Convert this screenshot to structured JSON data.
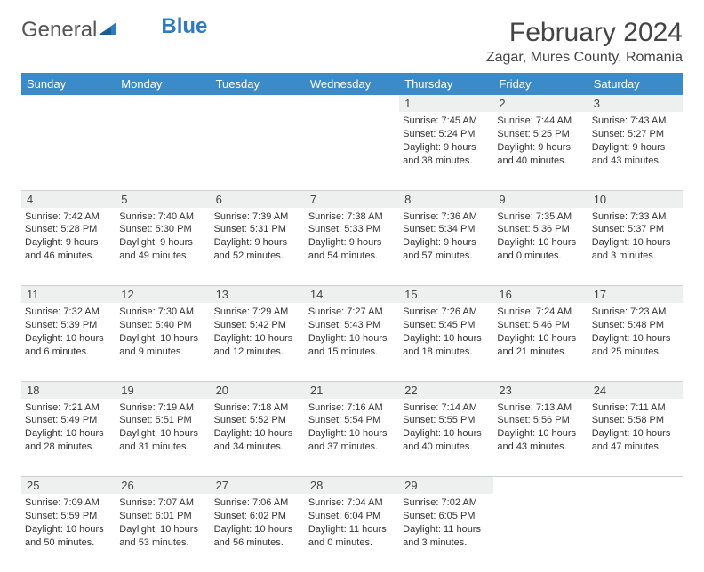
{
  "logo": {
    "part1": "General",
    "part2": "Blue"
  },
  "title": "February 2024",
  "location": "Zagar, Mures County, Romania",
  "colors": {
    "header_bg": "#3b8bc8",
    "daynum_bg": "#eef0f0",
    "text": "#333333",
    "border": "#d0d0d0"
  },
  "day_headers": [
    "Sunday",
    "Monday",
    "Tuesday",
    "Wednesday",
    "Thursday",
    "Friday",
    "Saturday"
  ],
  "weeks": [
    {
      "nums": [
        "",
        "",
        "",
        "",
        "1",
        "2",
        "3"
      ],
      "cells": [
        null,
        null,
        null,
        null,
        {
          "sr": "Sunrise: 7:45 AM",
          "ss": "Sunset: 5:24 PM",
          "d1": "Daylight: 9 hours",
          "d2": "and 38 minutes."
        },
        {
          "sr": "Sunrise: 7:44 AM",
          "ss": "Sunset: 5:25 PM",
          "d1": "Daylight: 9 hours",
          "d2": "and 40 minutes."
        },
        {
          "sr": "Sunrise: 7:43 AM",
          "ss": "Sunset: 5:27 PM",
          "d1": "Daylight: 9 hours",
          "d2": "and 43 minutes."
        }
      ]
    },
    {
      "nums": [
        "4",
        "5",
        "6",
        "7",
        "8",
        "9",
        "10"
      ],
      "cells": [
        {
          "sr": "Sunrise: 7:42 AM",
          "ss": "Sunset: 5:28 PM",
          "d1": "Daylight: 9 hours",
          "d2": "and 46 minutes."
        },
        {
          "sr": "Sunrise: 7:40 AM",
          "ss": "Sunset: 5:30 PM",
          "d1": "Daylight: 9 hours",
          "d2": "and 49 minutes."
        },
        {
          "sr": "Sunrise: 7:39 AM",
          "ss": "Sunset: 5:31 PM",
          "d1": "Daylight: 9 hours",
          "d2": "and 52 minutes."
        },
        {
          "sr": "Sunrise: 7:38 AM",
          "ss": "Sunset: 5:33 PM",
          "d1": "Daylight: 9 hours",
          "d2": "and 54 minutes."
        },
        {
          "sr": "Sunrise: 7:36 AM",
          "ss": "Sunset: 5:34 PM",
          "d1": "Daylight: 9 hours",
          "d2": "and 57 minutes."
        },
        {
          "sr": "Sunrise: 7:35 AM",
          "ss": "Sunset: 5:36 PM",
          "d1": "Daylight: 10 hours",
          "d2": "and 0 minutes."
        },
        {
          "sr": "Sunrise: 7:33 AM",
          "ss": "Sunset: 5:37 PM",
          "d1": "Daylight: 10 hours",
          "d2": "and 3 minutes."
        }
      ]
    },
    {
      "nums": [
        "11",
        "12",
        "13",
        "14",
        "15",
        "16",
        "17"
      ],
      "cells": [
        {
          "sr": "Sunrise: 7:32 AM",
          "ss": "Sunset: 5:39 PM",
          "d1": "Daylight: 10 hours",
          "d2": "and 6 minutes."
        },
        {
          "sr": "Sunrise: 7:30 AM",
          "ss": "Sunset: 5:40 PM",
          "d1": "Daylight: 10 hours",
          "d2": "and 9 minutes."
        },
        {
          "sr": "Sunrise: 7:29 AM",
          "ss": "Sunset: 5:42 PM",
          "d1": "Daylight: 10 hours",
          "d2": "and 12 minutes."
        },
        {
          "sr": "Sunrise: 7:27 AM",
          "ss": "Sunset: 5:43 PM",
          "d1": "Daylight: 10 hours",
          "d2": "and 15 minutes."
        },
        {
          "sr": "Sunrise: 7:26 AM",
          "ss": "Sunset: 5:45 PM",
          "d1": "Daylight: 10 hours",
          "d2": "and 18 minutes."
        },
        {
          "sr": "Sunrise: 7:24 AM",
          "ss": "Sunset: 5:46 PM",
          "d1": "Daylight: 10 hours",
          "d2": "and 21 minutes."
        },
        {
          "sr": "Sunrise: 7:23 AM",
          "ss": "Sunset: 5:48 PM",
          "d1": "Daylight: 10 hours",
          "d2": "and 25 minutes."
        }
      ]
    },
    {
      "nums": [
        "18",
        "19",
        "20",
        "21",
        "22",
        "23",
        "24"
      ],
      "cells": [
        {
          "sr": "Sunrise: 7:21 AM",
          "ss": "Sunset: 5:49 PM",
          "d1": "Daylight: 10 hours",
          "d2": "and 28 minutes."
        },
        {
          "sr": "Sunrise: 7:19 AM",
          "ss": "Sunset: 5:51 PM",
          "d1": "Daylight: 10 hours",
          "d2": "and 31 minutes."
        },
        {
          "sr": "Sunrise: 7:18 AM",
          "ss": "Sunset: 5:52 PM",
          "d1": "Daylight: 10 hours",
          "d2": "and 34 minutes."
        },
        {
          "sr": "Sunrise: 7:16 AM",
          "ss": "Sunset: 5:54 PM",
          "d1": "Daylight: 10 hours",
          "d2": "and 37 minutes."
        },
        {
          "sr": "Sunrise: 7:14 AM",
          "ss": "Sunset: 5:55 PM",
          "d1": "Daylight: 10 hours",
          "d2": "and 40 minutes."
        },
        {
          "sr": "Sunrise: 7:13 AM",
          "ss": "Sunset: 5:56 PM",
          "d1": "Daylight: 10 hours",
          "d2": "and 43 minutes."
        },
        {
          "sr": "Sunrise: 7:11 AM",
          "ss": "Sunset: 5:58 PM",
          "d1": "Daylight: 10 hours",
          "d2": "and 47 minutes."
        }
      ]
    },
    {
      "nums": [
        "25",
        "26",
        "27",
        "28",
        "29",
        "",
        ""
      ],
      "cells": [
        {
          "sr": "Sunrise: 7:09 AM",
          "ss": "Sunset: 5:59 PM",
          "d1": "Daylight: 10 hours",
          "d2": "and 50 minutes."
        },
        {
          "sr": "Sunrise: 7:07 AM",
          "ss": "Sunset: 6:01 PM",
          "d1": "Daylight: 10 hours",
          "d2": "and 53 minutes."
        },
        {
          "sr": "Sunrise: 7:06 AM",
          "ss": "Sunset: 6:02 PM",
          "d1": "Daylight: 10 hours",
          "d2": "and 56 minutes."
        },
        {
          "sr": "Sunrise: 7:04 AM",
          "ss": "Sunset: 6:04 PM",
          "d1": "Daylight: 11 hours",
          "d2": "and 0 minutes."
        },
        {
          "sr": "Sunrise: 7:02 AM",
          "ss": "Sunset: 6:05 PM",
          "d1": "Daylight: 11 hours",
          "d2": "and 3 minutes."
        },
        null,
        null
      ]
    }
  ]
}
